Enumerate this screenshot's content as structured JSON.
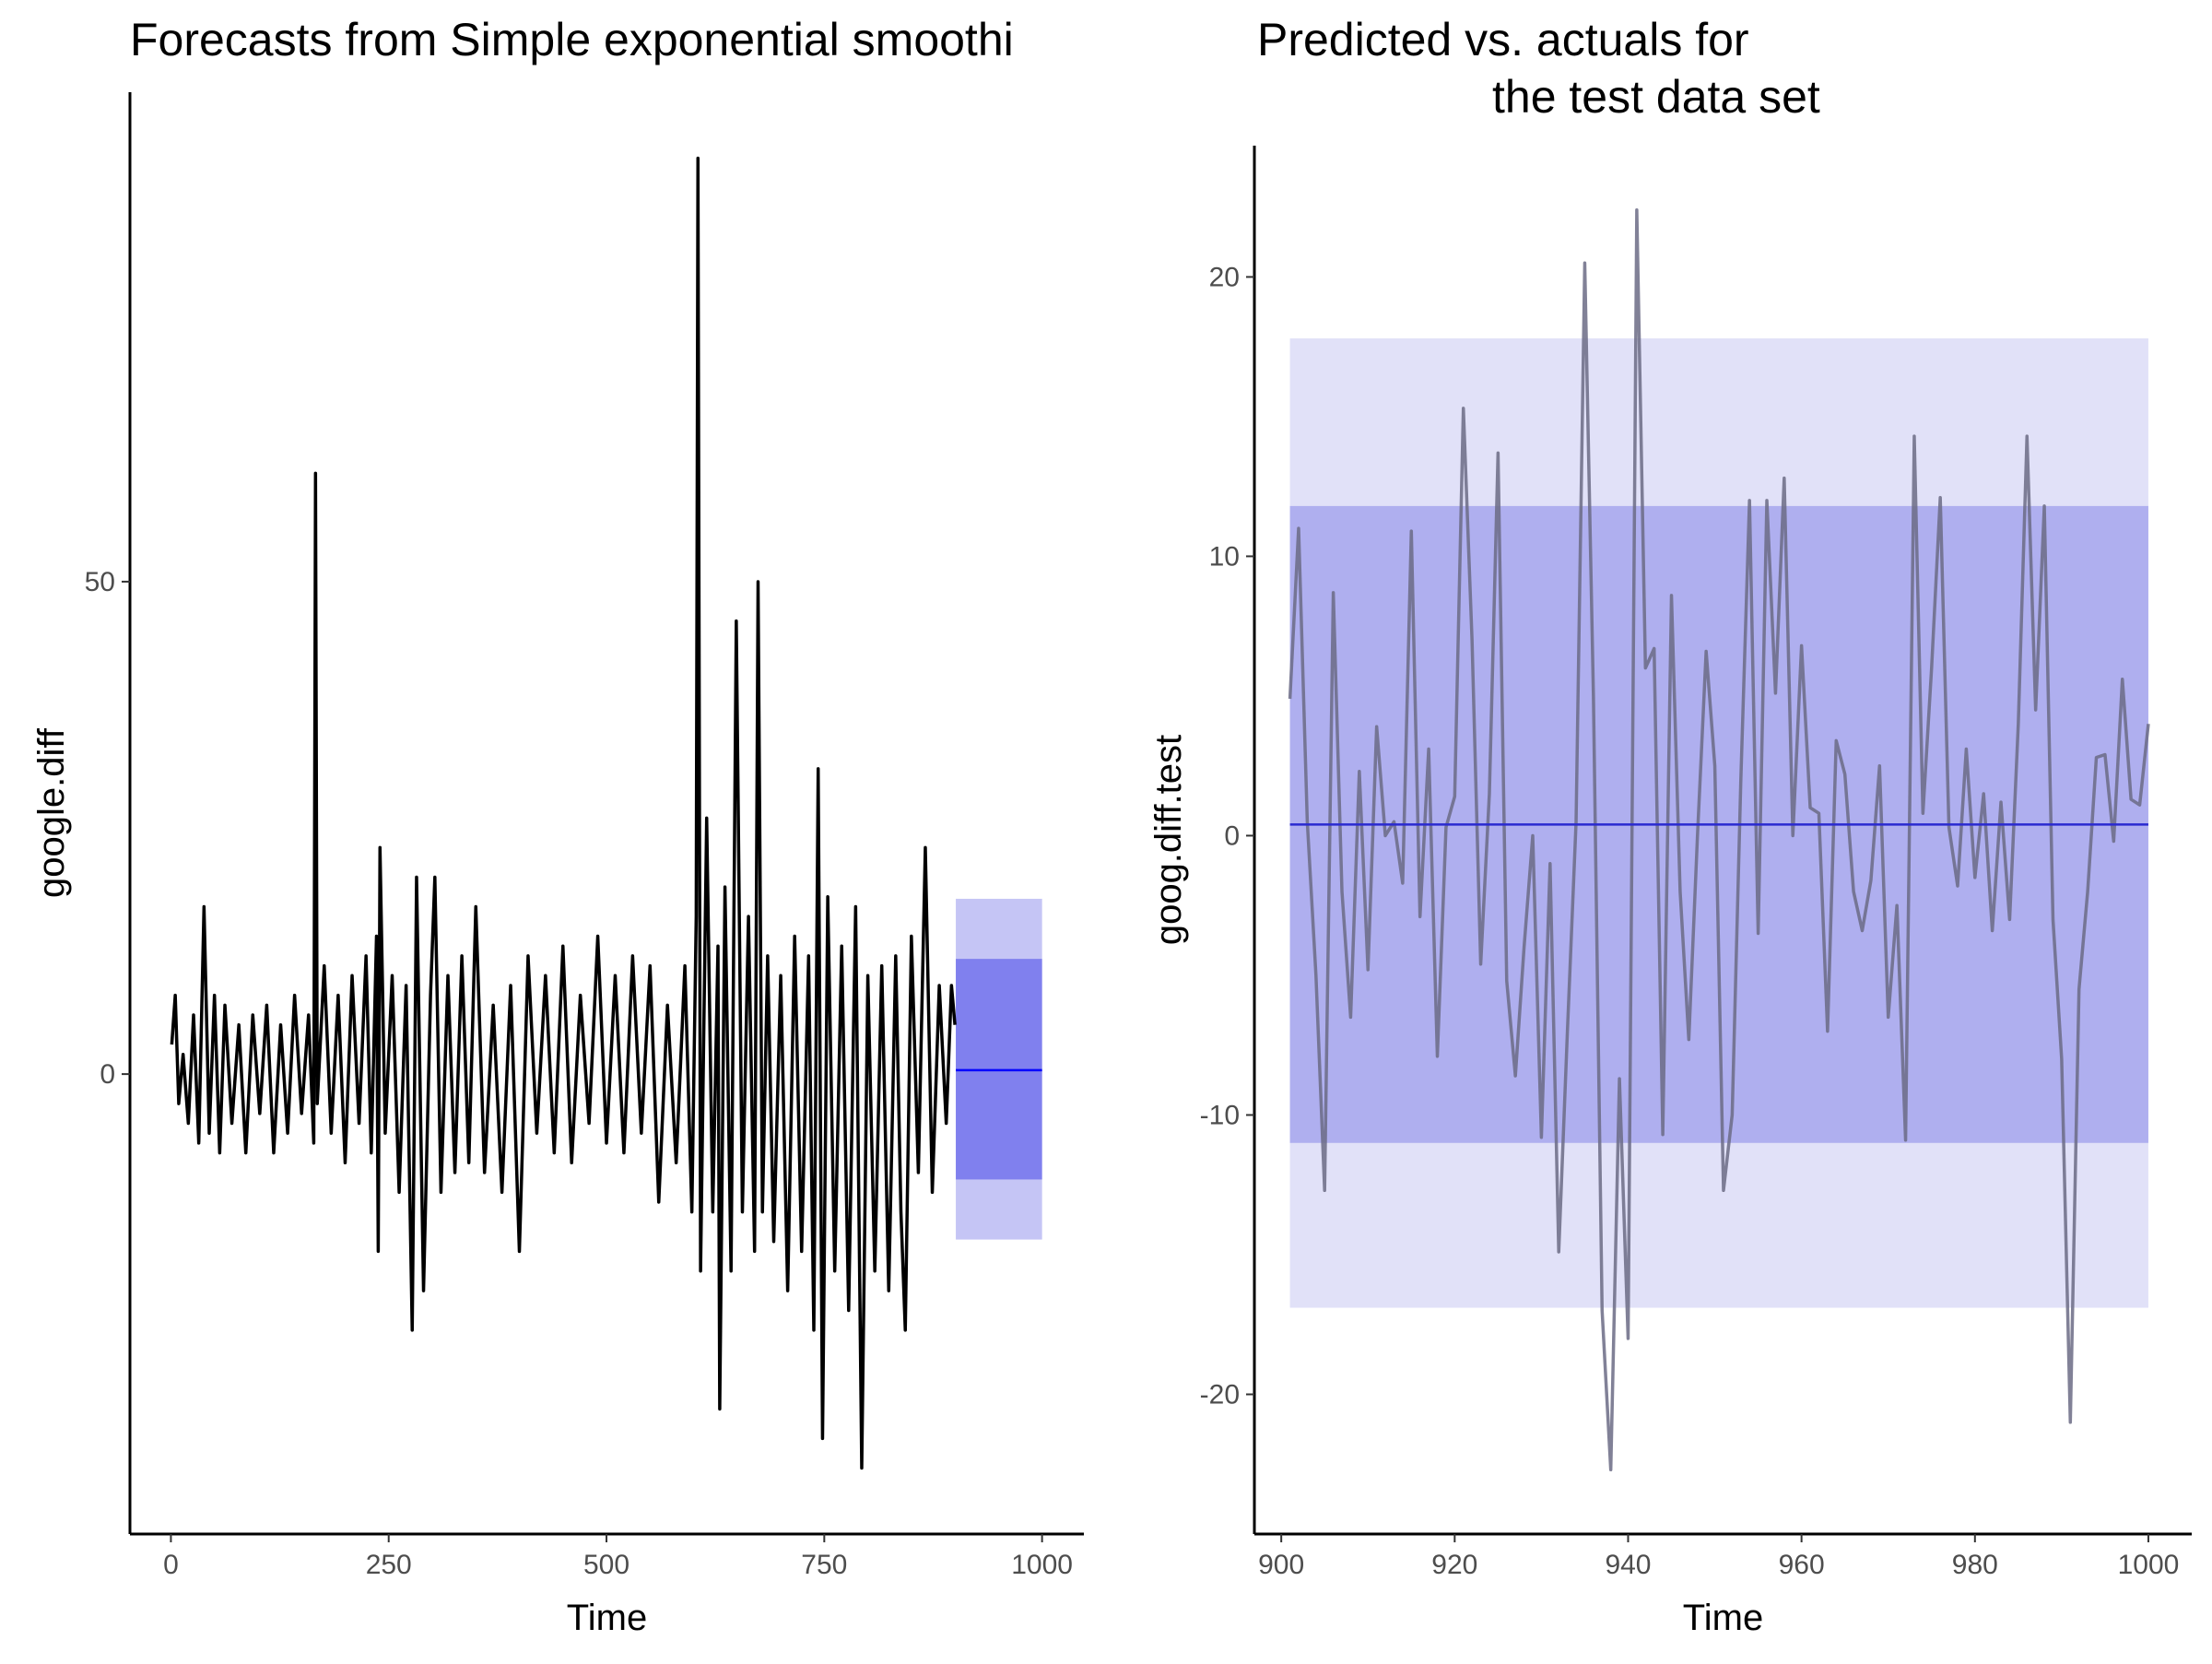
{
  "chart_data": [
    {
      "type": "line",
      "title": "Forecasts from Simple exponential smoothi",
      "x_label": "Time",
      "y_label": "google.diff",
      "color": "#000000",
      "x": [
        1,
        5,
        9,
        14,
        20,
        26,
        32,
        38,
        44,
        50,
        56,
        62,
        70,
        78,
        86,
        94,
        102,
        110,
        118,
        126,
        134,
        142,
        150,
        158,
        164,
        166,
        168,
        176,
        184,
        192,
        200,
        208,
        216,
        224,
        230,
        236,
        238,
        240,
        246,
        254,
        262,
        270,
        277,
        282,
        290,
        298,
        303,
        310,
        318,
        326,
        334,
        342,
        350,
        360,
        370,
        380,
        390,
        400,
        410,
        420,
        430,
        440,
        450,
        460,
        470,
        480,
        490,
        500,
        510,
        520,
        530,
        540,
        550,
        560,
        570,
        580,
        590,
        598,
        603,
        605,
        608,
        615,
        622,
        628,
        630,
        636,
        643,
        649,
        656,
        663,
        670,
        674,
        679,
        685,
        692,
        700,
        708,
        716,
        724,
        732,
        738,
        743,
        748,
        754,
        762,
        770,
        778,
        786,
        793,
        800,
        808,
        816,
        824,
        832,
        838,
        843,
        850,
        858,
        866,
        874,
        882,
        890,
        896,
        900
      ],
      "values": [
        3,
        8,
        -3,
        2,
        -5,
        6,
        -7,
        17,
        -6,
        8,
        -8,
        7,
        -5,
        5,
        -8,
        6,
        -4,
        7,
        -8,
        5,
        -6,
        8,
        -4,
        6,
        -7,
        61,
        -3,
        11,
        -6,
        8,
        -9,
        10,
        -5,
        12,
        -8,
        14,
        -18,
        23,
        -6,
        10,
        -12,
        9,
        -26,
        20,
        -22,
        8,
        20,
        -12,
        10,
        -10,
        12,
        -9,
        17,
        -10,
        7,
        -12,
        9,
        -18,
        12,
        -6,
        10,
        -8,
        13,
        -9,
        8,
        -5,
        14,
        -7,
        10,
        -8,
        12,
        -6,
        11,
        -13,
        7,
        -9,
        11,
        -14,
        16,
        93,
        -20,
        26,
        -14,
        13,
        -34,
        19,
        -20,
        46,
        -14,
        16,
        -18,
        50,
        -14,
        12,
        -17,
        10,
        -22,
        14,
        -18,
        12,
        -26,
        31,
        -37,
        18,
        -20,
        13,
        -24,
        17,
        -40,
        10,
        -20,
        11,
        -22,
        12,
        -14,
        -26,
        14,
        -10,
        23,
        -12,
        9,
        -5,
        9,
        5
      ],
      "forecast": {
        "x": [
          901,
          1000
        ],
        "mean": 0.4,
        "lo80": -10.7,
        "hi80": 11.7,
        "lo95": -16.8,
        "hi95": 17.8,
        "color": "#0000ff",
        "color80": "#8080ee",
        "color95": "#c5c5f5"
      },
      "xlim": [
        -47,
        1048
      ],
      "ylim": [
        -46.7,
        99.7
      ],
      "xticks": [
        0,
        250,
        500,
        750,
        1000
      ],
      "yticks": [
        0,
        50
      ],
      "grid": false
    },
    {
      "type": "line",
      "title": [
        "Predicted vs. actuals for",
        "the test data set"
      ],
      "x_label": "Time",
      "y_label": "goog.diff.test",
      "color": "#6b6b85",
      "x": [
        901,
        902,
        903,
        904,
        905,
        906,
        907,
        908,
        909,
        910,
        911,
        912,
        913,
        914,
        915,
        916,
        917,
        918,
        919,
        920,
        921,
        922,
        923,
        924,
        925,
        926,
        927,
        928,
        929,
        930,
        931,
        932,
        933,
        934,
        935,
        936,
        937,
        938,
        939,
        940,
        941,
        942,
        943,
        944,
        945,
        946,
        947,
        948,
        949,
        950,
        951,
        952,
        953,
        954,
        955,
        956,
        957,
        958,
        959,
        960,
        961,
        962,
        963,
        964,
        965,
        966,
        967,
        968,
        969,
        970,
        971,
        972,
        973,
        974,
        975,
        976,
        977,
        978,
        979,
        980,
        981,
        982,
        983,
        984,
        985,
        986,
        987,
        988,
        989,
        990,
        991,
        992,
        993,
        994,
        995,
        996,
        997,
        998,
        999,
        1000
      ],
      "values": [
        4.9,
        11,
        0.5,
        -5,
        -12.7,
        8.7,
        -2,
        -6.5,
        2.3,
        -4.8,
        3.9,
        0,
        0.5,
        -1.7,
        10.9,
        -2.9,
        3.1,
        -7.9,
        0.3,
        1.4,
        15.3,
        7,
        -4.6,
        1.5,
        13.7,
        -5.2,
        -8.6,
        -4,
        0,
        -10.8,
        -1,
        -14.9,
        -7,
        0.5,
        20.5,
        5,
        -17,
        -22.7,
        -8.7,
        -18,
        22.4,
        6,
        6.7,
        -10.7,
        8.6,
        -2,
        -7.3,
        0,
        6.6,
        2.5,
        -12.7,
        -10,
        2,
        12,
        -3.5,
        12,
        5.1,
        12.8,
        0,
        6.8,
        1,
        0.8,
        -7,
        3.4,
        2.2,
        -2,
        -3.4,
        -1.6,
        2.5,
        -6.5,
        -2.5,
        -10.9,
        14.3,
        0.8,
        6,
        12.1,
        0.3,
        -1.8,
        3.1,
        -1.5,
        1.5,
        -3.4,
        1.2,
        -3,
        4,
        14.3,
        4.5,
        11.8,
        -3,
        -8,
        -21,
        -5.5,
        -2,
        2.8,
        2.9,
        -0.2,
        5.6,
        1.3,
        1.1,
        4
      ],
      "forecast": {
        "x": [
          901,
          1000
        ],
        "mean": 0.4,
        "lo80": -11,
        "hi80": 11.8,
        "lo95": -16.9,
        "hi95": 17.8,
        "color": "#2a2ad0",
        "color80": "#afafef",
        "color95": "#e1e1f8"
      },
      "xlim": [
        896.9,
        1005
      ],
      "ylim": [
        -25,
        24.7
      ],
      "xticks": [
        900,
        920,
        940,
        960,
        980,
        1000
      ],
      "yticks": [
        -20,
        -10,
        0,
        10,
        20
      ],
      "grid": false
    }
  ]
}
